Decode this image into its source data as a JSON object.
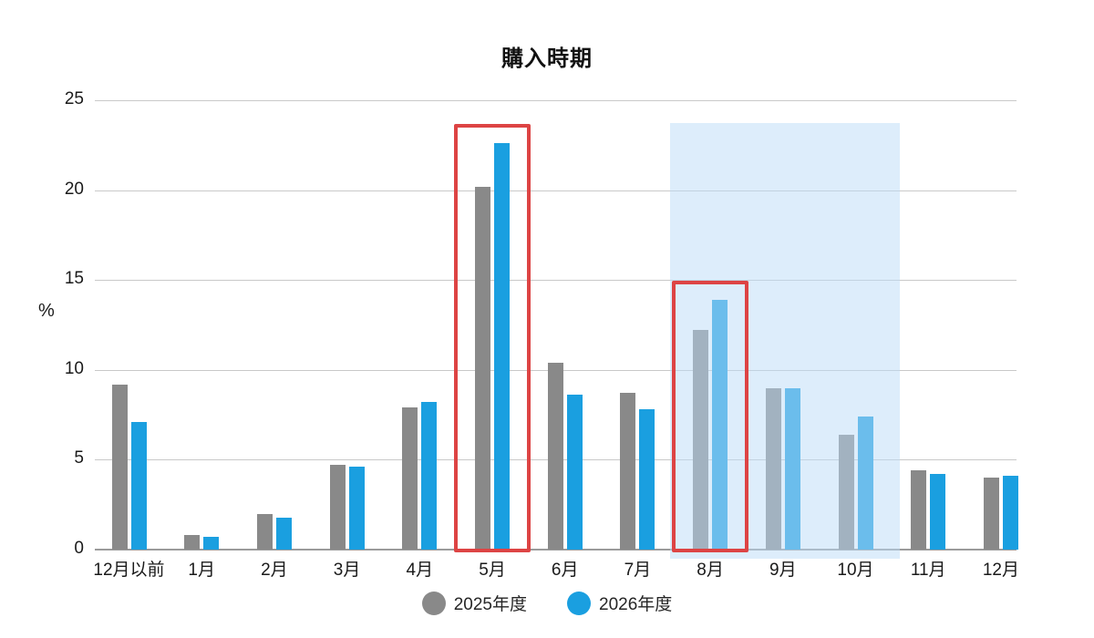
{
  "title": "購入時期",
  "y_axis": {
    "unit_label": "%",
    "ticks": [
      0,
      5,
      10,
      15,
      20,
      25
    ],
    "max": 25
  },
  "legend": [
    {
      "label": "2025年度",
      "color": "#898989"
    },
    {
      "label": "2026年度",
      "color": "#1a9fe0"
    }
  ],
  "colors": {
    "series_2025": "#898989",
    "series_2026": "#1a9fe0",
    "highlight_box_red": "#dd4444",
    "highlight_band_blue": "rgba(188,220,247,0.5)",
    "gridline": "#c9c9c9",
    "axis": "#9b9b9b"
  },
  "chart_data": {
    "type": "bar",
    "title": "購入時期",
    "xlabel": "",
    "ylabel": "%",
    "ylim": [
      0,
      25
    ],
    "grid": true,
    "legend_position": "bottom",
    "categories": [
      "12月以前",
      "1月",
      "2月",
      "3月",
      "4月",
      "5月",
      "6月",
      "7月",
      "8月",
      "9月",
      "10月",
      "11月",
      "12月"
    ],
    "series": [
      {
        "name": "2025年度",
        "color": "#898989",
        "values": [
          9.2,
          0.8,
          2.0,
          4.7,
          7.9,
          20.2,
          10.4,
          8.7,
          12.2,
          9.0,
          6.4,
          4.4,
          4.0
        ]
      },
      {
        "name": "2026年度",
        "color": "#1a9fe0",
        "values": [
          7.1,
          0.7,
          1.8,
          4.6,
          8.2,
          22.6,
          8.6,
          7.8,
          13.9,
          9.0,
          7.4,
          4.2,
          4.1
        ]
      }
    ],
    "annotations": {
      "red_box_categories": [
        "5月",
        "8月"
      ],
      "highlight_band": {
        "from": "8月",
        "to": "10月",
        "color": "rgba(188,220,247,0.5)"
      }
    }
  }
}
